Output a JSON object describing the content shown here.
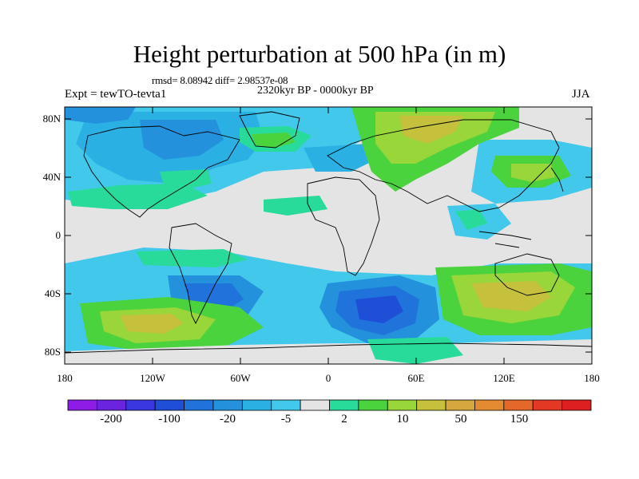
{
  "map": {
    "title": "Height perturbation at 500 hPa (in m)",
    "stats": "rmsd= 8.08942 diff= 2.98537e-08",
    "period": "2320kyr BP - 0000kyr BP",
    "experiment": "Expt = tewTO-tevta1",
    "season": "JJA",
    "lat_labels": [
      "80N",
      "40N",
      "0",
      "40S",
      "80S"
    ],
    "lon_labels": [
      "180",
      "120W",
      "60W",
      "0",
      "60E",
      "120E",
      "180"
    ]
  },
  "colorbar": {
    "colors": [
      "#8c1ce6",
      "#6a24e0",
      "#3a36e0",
      "#1f4fd6",
      "#1f73da",
      "#2391dc",
      "#2bb0e4",
      "#41c8ea",
      "#e4e4e4",
      "#29db9b",
      "#4bd33d",
      "#98d63a",
      "#c6c13d",
      "#d5a83f",
      "#e48a31",
      "#e4682a",
      "#e33924",
      "#dd1f1f"
    ],
    "labels": [
      "-200",
      "-100",
      "-20",
      "-5",
      "2",
      "10",
      "50",
      "150"
    ]
  }
}
